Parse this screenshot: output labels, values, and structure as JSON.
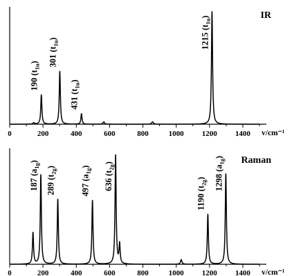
{
  "chart_data": [
    {
      "type": "line",
      "title": "IR",
      "xlabel": "v/cm⁻¹",
      "xlim": [
        0,
        1500
      ],
      "xticks": [
        "0",
        "200",
        "400",
        "600",
        "800",
        "1000",
        "1200",
        "1400"
      ],
      "tick_values": [
        0,
        200,
        400,
        600,
        800,
        1000,
        1200,
        1400
      ],
      "y_axis_ticks": false,
      "peaks": [
        {
          "x": 145,
          "height": 0.012,
          "width": 10
        },
        {
          "x": 190,
          "height": 0.25,
          "width": 8
        },
        {
          "x": 301,
          "height": 0.45,
          "width": 8
        },
        {
          "x": 431,
          "height": 0.09,
          "width": 8
        },
        {
          "x": 565,
          "height": 0.02,
          "width": 10
        },
        {
          "x": 858,
          "height": 0.02,
          "width": 12
        },
        {
          "x": 1215,
          "height": 0.96,
          "width": 8
        }
      ],
      "annotations": [
        {
          "x": 190,
          "value": "190",
          "symbol": "t",
          "sub": "1u"
        },
        {
          "x": 301,
          "value": "301",
          "symbol": "t",
          "sub": "1u"
        },
        {
          "x": 431,
          "value": "431",
          "symbol": "t",
          "sub": "1u"
        },
        {
          "x": 1215,
          "value": "1215",
          "symbol": "t",
          "sub": "1u"
        }
      ]
    },
    {
      "type": "line",
      "title": "Raman",
      "xlabel": "v/cm⁻¹",
      "xlim": [
        0,
        1500
      ],
      "xticks": [
        "0",
        "200",
        "400",
        "600",
        "800",
        "1000",
        "1200",
        "1400"
      ],
      "tick_values": [
        0,
        200,
        400,
        600,
        800,
        1000,
        1200,
        1400
      ],
      "y_axis_ticks": false,
      "peaks": [
        {
          "x": 140,
          "height": 0.27,
          "width": 8
        },
        {
          "x": 187,
          "height": 0.77,
          "width": 8
        },
        {
          "x": 289,
          "height": 0.56,
          "width": 8
        },
        {
          "x": 497,
          "height": 0.55,
          "width": 8
        },
        {
          "x": 636,
          "height": 0.94,
          "width": 8
        },
        {
          "x": 660,
          "height": 0.17,
          "width": 8
        },
        {
          "x": 1030,
          "height": 0.04,
          "width": 10
        },
        {
          "x": 1190,
          "height": 0.43,
          "width": 8
        },
        {
          "x": 1298,
          "height": 0.78,
          "width": 8
        }
      ],
      "annotations": [
        {
          "x": 187,
          "value": "187",
          "symbol": "a",
          "sub": "1g"
        },
        {
          "x": 289,
          "value": "289",
          "symbol": "t",
          "sub": "2g"
        },
        {
          "x": 497,
          "value": "497",
          "symbol": "a",
          "sub": "1g"
        },
        {
          "x": 636,
          "value": "636",
          "symbol": "t",
          "sub": "2g"
        },
        {
          "x": 1190,
          "value": "1190",
          "symbol": "t",
          "sub": "2g"
        },
        {
          "x": 1298,
          "value": "1298",
          "symbol": "a",
          "sub": "1g"
        }
      ]
    }
  ]
}
